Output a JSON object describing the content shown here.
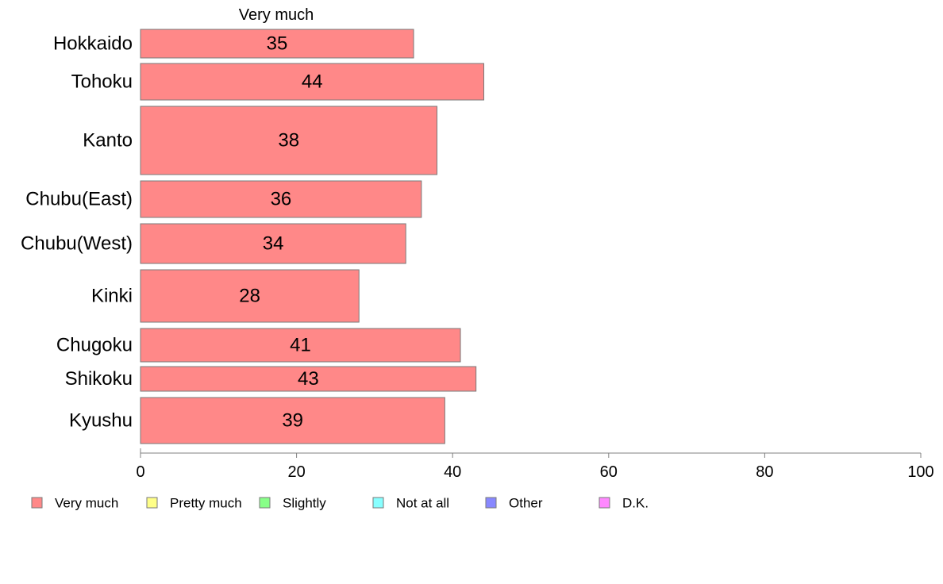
{
  "chart_data": {
    "type": "bar",
    "orientation": "horizontal",
    "title": "Very much",
    "categories": [
      "Hokkaido",
      "Tohoku",
      "Kanto",
      "Chubu(East)",
      "Chubu(West)",
      "Kinki",
      "Chugoku",
      "Shikoku",
      "Kyushu"
    ],
    "values": [
      35,
      44,
      38,
      36,
      34,
      28,
      41,
      43,
      39
    ],
    "xlim": [
      0,
      100
    ],
    "xticks": [
      "0",
      "20",
      "40",
      "60",
      "80",
      "100"
    ],
    "xlabel": "",
    "ylabel": "",
    "grid": false,
    "legend_position": "bottom",
    "legend": [
      {
        "label": "Very much",
        "color": "#ff8888"
      },
      {
        "label": "Pretty much",
        "color": "#ffff88"
      },
      {
        "label": "Slightly",
        "color": "#88ff88"
      },
      {
        "label": "Not at all",
        "color": "#88ffff"
      },
      {
        "label": "Other",
        "color": "#8888ff"
      },
      {
        "label": "D.K.",
        "color": "#ff88ff"
      }
    ]
  }
}
